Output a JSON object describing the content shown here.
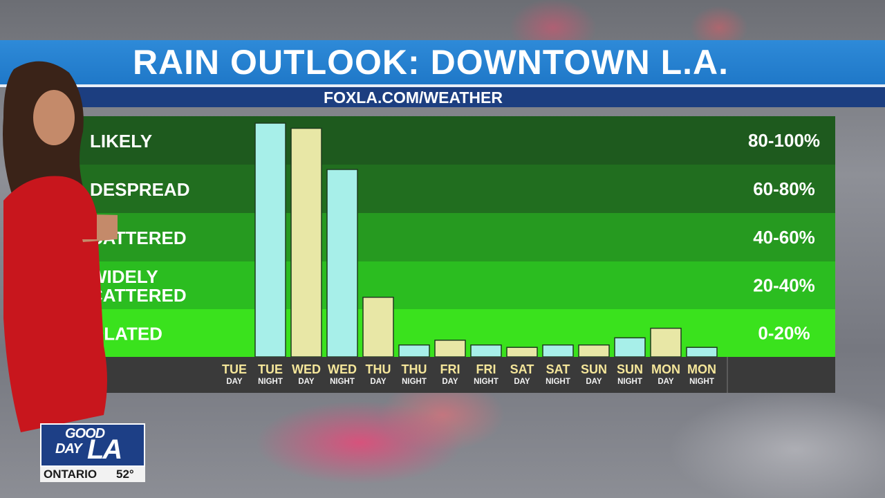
{
  "title": "RAIN OUTLOOK: DOWNTOWN L.A.",
  "subtitle": "FOXLA.COM/WEATHER",
  "colors": {
    "title_bar": "#2283d2",
    "sub_bar": "#1c3e80",
    "day_bar": "#e8e7a6",
    "night_bar": "#a7efe9",
    "band_colors": [
      "#1e5a1e",
      "#216e1f",
      "#269a20",
      "#2bbd20",
      "#3ae21d"
    ]
  },
  "chart_data": {
    "type": "bar",
    "title": "RAIN OUTLOOK: DOWNTOWN L.A.",
    "ylim": [
      0,
      100
    ],
    "categories_top": [
      "TUE",
      "TUE",
      "WED",
      "WED",
      "THU",
      "THU",
      "FRI",
      "FRI",
      "SAT",
      "SAT",
      "SUN",
      "SUN",
      "MON",
      "MON"
    ],
    "categories_bottom": [
      "DAY",
      "NIGHT",
      "DAY",
      "NIGHT",
      "DAY",
      "NIGHT",
      "DAY",
      "NIGHT",
      "DAY",
      "NIGHT",
      "DAY",
      "NIGHT",
      "DAY",
      "NIGHT"
    ],
    "values": [
      null,
      98,
      95,
      78,
      25,
      5,
      7,
      5,
      4,
      5,
      5,
      8,
      12,
      4
    ],
    "bands": [
      {
        "label_lines": [
          "LIKELY"
        ],
        "range": "80-100%"
      },
      {
        "label_lines": [
          "DESPREAD"
        ],
        "range": "60-80%"
      },
      {
        "label_lines": [
          "CATTERED"
        ],
        "range": "40-60%"
      },
      {
        "label_lines": [
          "WIDELY",
          "CATTERED"
        ],
        "range": "20-40%"
      },
      {
        "label_lines": [
          "OLATED"
        ],
        "range": "0-20%"
      }
    ]
  },
  "logo": {
    "line1": "GOOD",
    "line2": "DAY",
    "line3": "LA"
  },
  "ticker": {
    "city": "ONTARIO",
    "temp": "52°"
  }
}
